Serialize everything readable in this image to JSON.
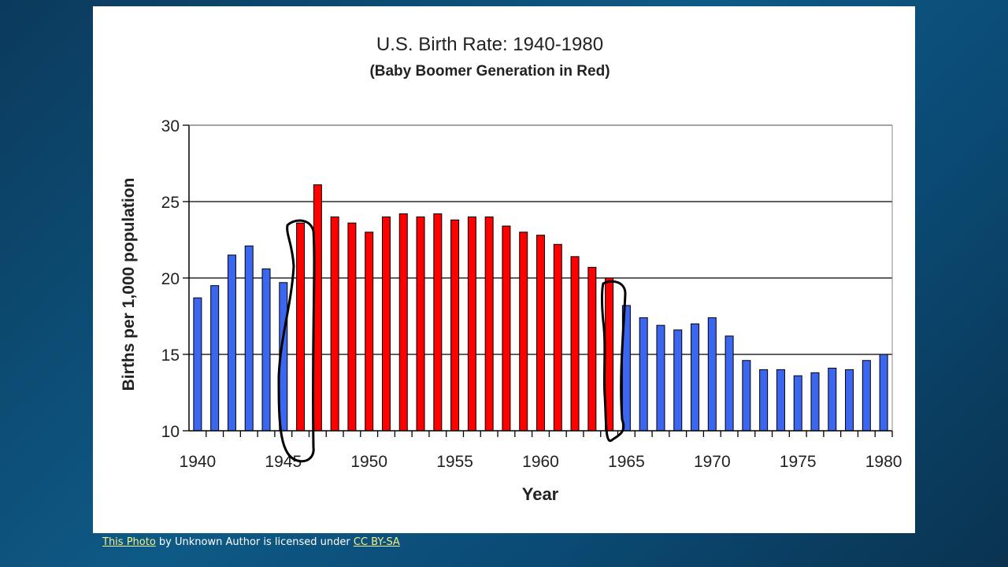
{
  "chart_data": {
    "type": "bar",
    "title": "U.S. Birth Rate: 1940-1980",
    "subtitle": "(Baby Boomer Generation in Red)",
    "xlabel": "Year",
    "ylabel": "Births per 1,000 population",
    "ylim": [
      10,
      30
    ],
    "yticks": [
      "10",
      "15",
      "20",
      "25",
      "30"
    ],
    "xticks": [
      "1940",
      "1945",
      "1950",
      "1955",
      "1960",
      "1965",
      "1970",
      "1975",
      "1980"
    ],
    "grid": true,
    "x": [
      1940,
      1941,
      1942,
      1943,
      1944,
      1945,
      1946,
      1947,
      1948,
      1949,
      1950,
      1951,
      1952,
      1953,
      1954,
      1955,
      1956,
      1957,
      1958,
      1959,
      1960,
      1961,
      1962,
      1963,
      1964,
      1965,
      1966,
      1967,
      1968,
      1969,
      1970,
      1971,
      1972,
      1973,
      1974,
      1975,
      1976,
      1977,
      1978,
      1979,
      1980
    ],
    "values": [
      18.7,
      19.5,
      21.5,
      22.1,
      20.6,
      19.7,
      23.6,
      26.1,
      24.0,
      23.6,
      23.0,
      24.0,
      24.2,
      24.0,
      24.2,
      23.8,
      24.0,
      24.0,
      23.4,
      23.0,
      22.8,
      22.2,
      21.4,
      20.7,
      20.0,
      18.2,
      17.4,
      16.9,
      16.6,
      17.0,
      17.4,
      16.2,
      14.6,
      14.0,
      14.0,
      13.6,
      13.8,
      14.1,
      14.0,
      14.6,
      15.0
    ],
    "boomer_range": [
      1946,
      1964
    ],
    "colors": {
      "boomer": "#ff0000",
      "other": "#3a66f0"
    },
    "annotations": "hand-drawn loops around 1946 and 1964 bars"
  },
  "footer": {
    "link1": "This Photo",
    "middle": " by Unknown Author is licensed under ",
    "link2": "CC BY-SA"
  }
}
